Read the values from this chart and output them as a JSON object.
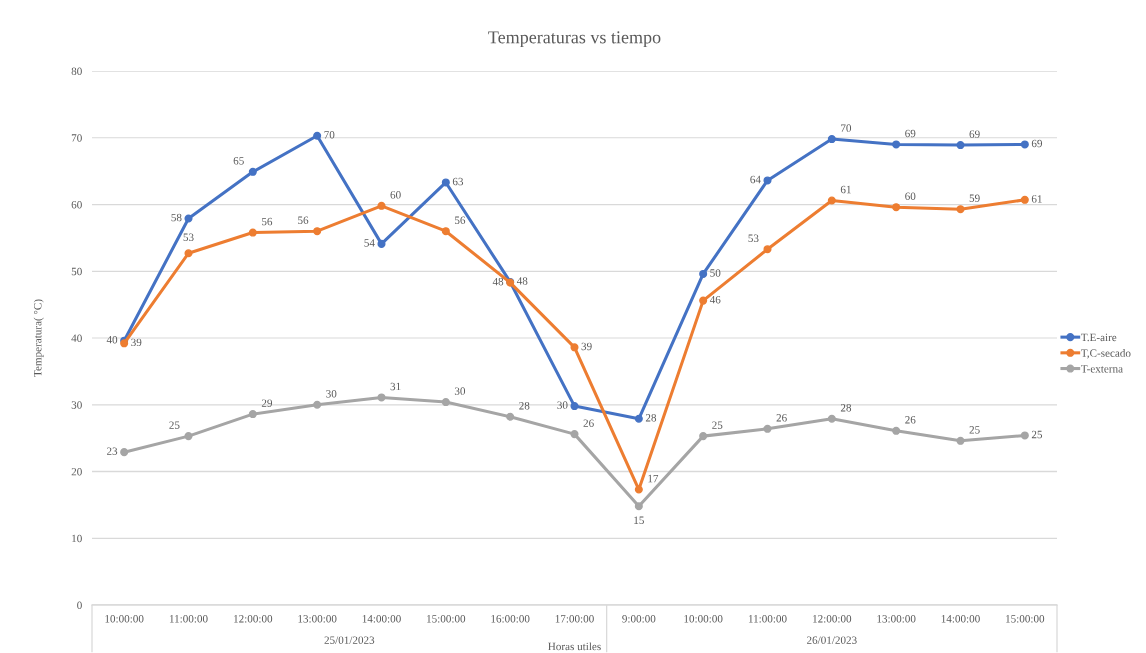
{
  "chart_data": {
    "type": "line",
    "title": "Temperaturas vs tiempo",
    "xlabel": "Horas utiles",
    "ylabel": "Temperatura( °C)",
    "categories": [
      "10:00:00",
      "11:00:00",
      "12:00:00",
      "13:00:00",
      "14:00:00",
      "15:00:00",
      "16:00:00",
      "17:00:00",
      "9:00:00",
      "10:00:00",
      "11:00:00",
      "12:00:00",
      "13:00:00",
      "14:00:00",
      "15:00:00"
    ],
    "series": [
      {
        "name": "T.E-aire",
        "color": "#4472c4",
        "values": [
          39.6,
          57.9,
          64.9,
          70.3,
          54.1,
          63.3,
          48.4,
          29.8,
          27.9,
          49.6,
          63.6,
          69.8,
          69.0,
          68.9,
          69.0
        ],
        "value_labels": [
          "40",
          "58",
          "65",
          "70",
          "54",
          "63",
          "48",
          "30",
          "28",
          "50",
          "64",
          "70",
          "69",
          "69",
          "69"
        ]
      },
      {
        "name": "T,C-secado",
        "color": "#ed7d31",
        "values": [
          39.2,
          52.7,
          55.8,
          56.0,
          59.8,
          56.0,
          48.3,
          38.6,
          17.3,
          45.6,
          53.3,
          60.6,
          59.6,
          59.3,
          60.7
        ],
        "value_labels": [
          "39",
          "53",
          "56",
          "56",
          "60",
          "56",
          "48",
          "39",
          "17",
          "46",
          "53",
          "61",
          "60",
          "59",
          "61"
        ]
      },
      {
        "name": "T-externa",
        "color": "#a5a5a5",
        "values": [
          22.9,
          25.3,
          28.6,
          30.0,
          31.1,
          30.4,
          28.2,
          25.6,
          14.8,
          25.3,
          26.4,
          27.9,
          26.1,
          24.6,
          25.4
        ],
        "value_labels": [
          "23",
          "25",
          "29",
          "30",
          "31",
          "30",
          "28",
          "26",
          "15",
          "25",
          "26",
          "28",
          "26",
          "25",
          "25"
        ]
      }
    ],
    "annotations": [
      "25/01/2023",
      "26/01/2023"
    ],
    "ylim": [
      0,
      80
    ],
    "yticks": [
      0,
      10,
      20,
      30,
      40,
      50,
      60,
      70,
      80
    ],
    "grid": "y",
    "legend": "right",
    "marker": "circle",
    "line_style": "solid"
  }
}
